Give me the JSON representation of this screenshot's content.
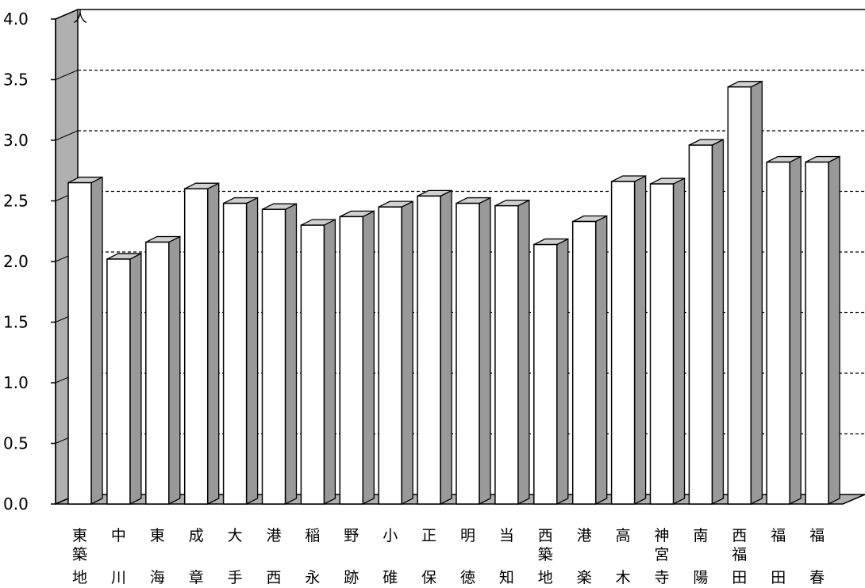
{
  "chart_data": {
    "type": "bar",
    "style": "3d-column",
    "unit_label": "人",
    "categories": [
      "東築地",
      "中川",
      "東海",
      "成章",
      "大手",
      "港西",
      "稲永",
      "野跡",
      "小碓",
      "正保",
      "明徳",
      "当知",
      "西築地",
      "港楽",
      "高木",
      "神宮寺",
      "南陽",
      "西福田",
      "福田",
      "福春"
    ],
    "values": [
      2.65,
      2.02,
      2.16,
      2.6,
      2.48,
      2.43,
      2.3,
      2.37,
      2.45,
      2.54,
      2.48,
      2.46,
      2.14,
      2.33,
      2.66,
      2.64,
      2.96,
      3.44,
      2.82,
      2.82
    ],
    "ylim": [
      0,
      4.0
    ],
    "y_ticks": [
      "0.0",
      "0.5",
      "1.0",
      "1.5",
      "2.0",
      "2.5",
      "3.0",
      "3.5",
      "4.0"
    ],
    "gridlines": true,
    "legend": "none",
    "colors": {
      "bar_front": "#ffffff",
      "bar_side": "#999999",
      "bar_top": "#d0d0d0",
      "wall": "#b0b0b0",
      "outline": "#000000"
    }
  }
}
